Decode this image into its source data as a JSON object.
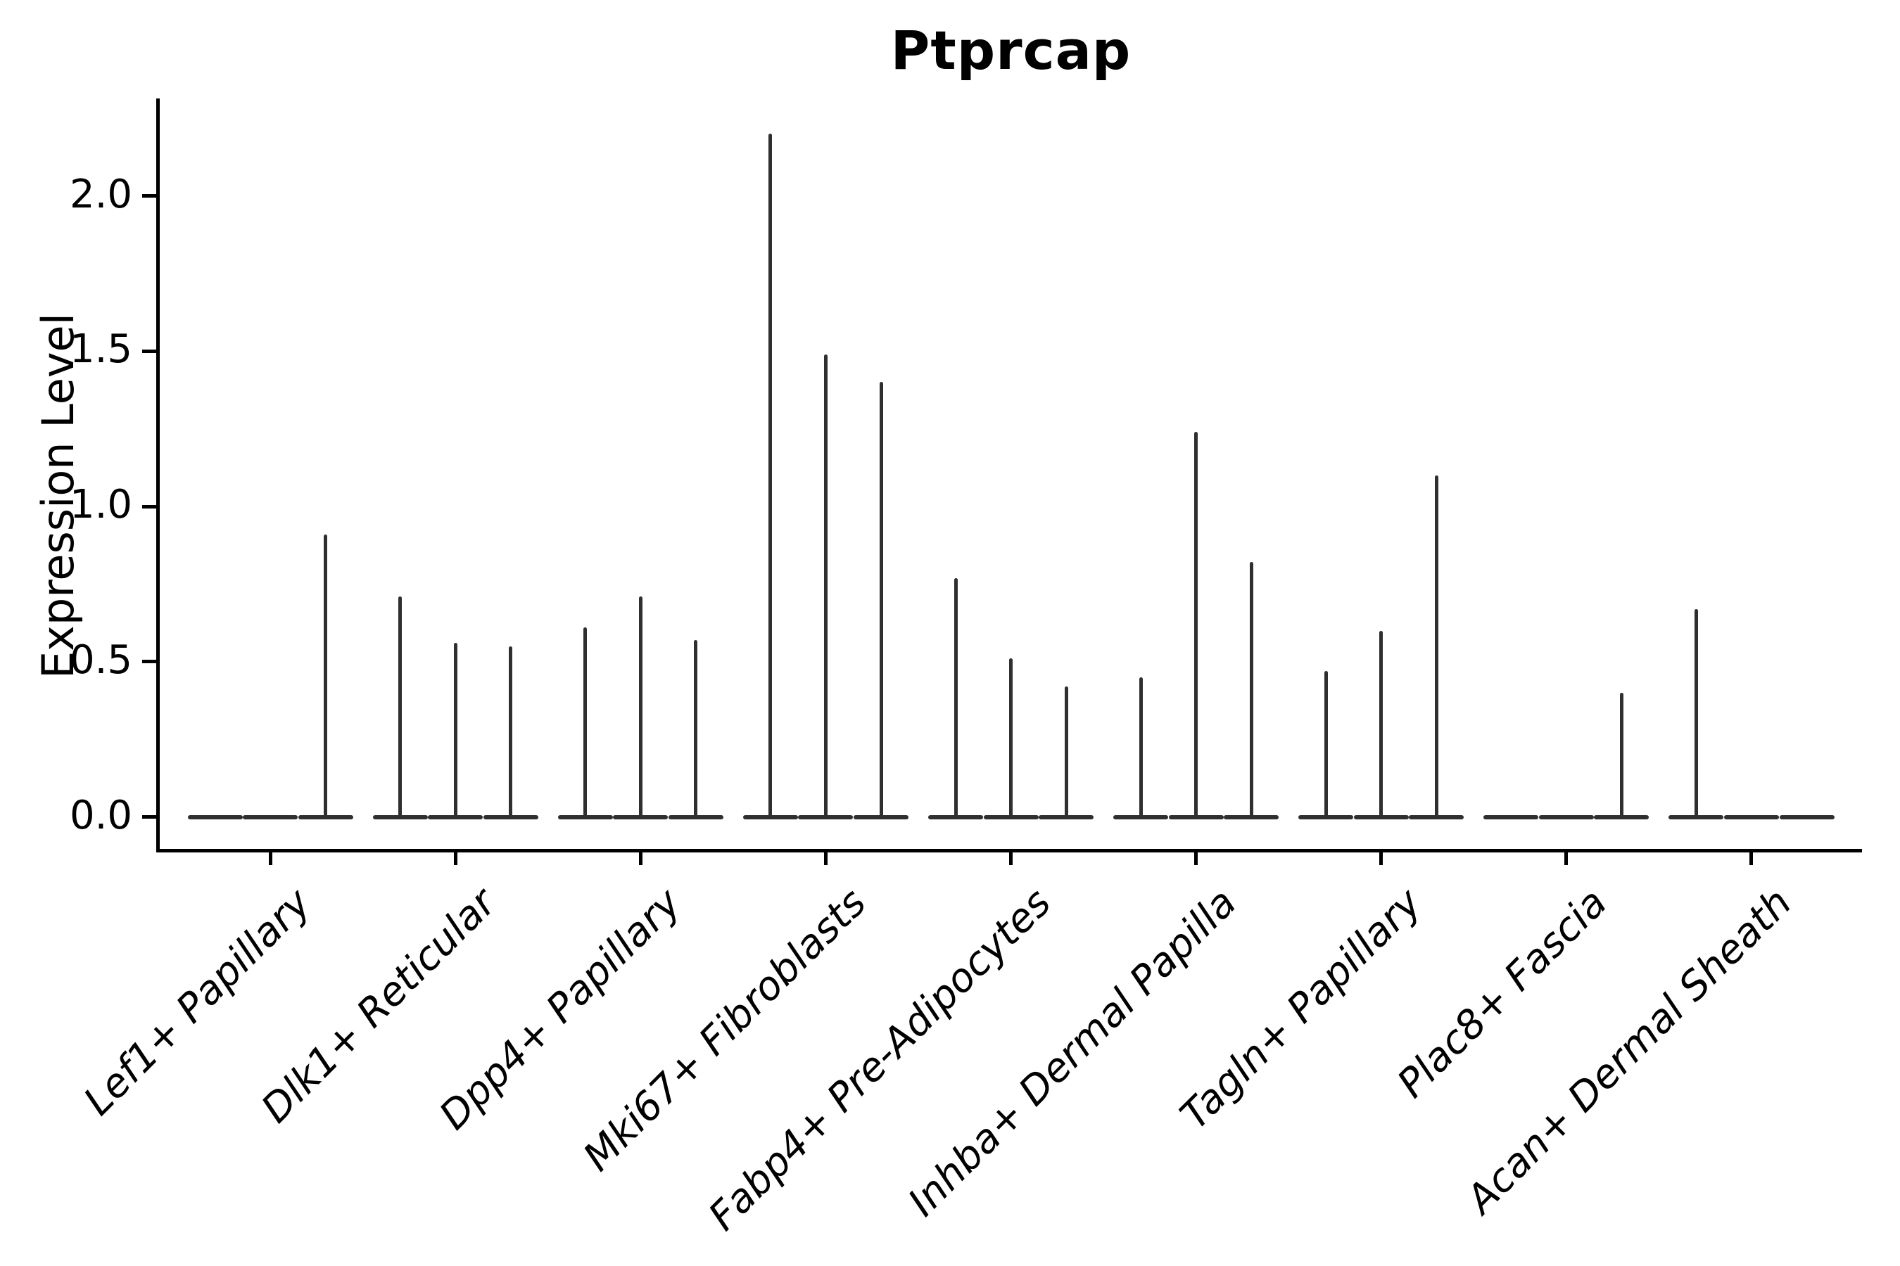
{
  "figure": {
    "title": "Ptprcap",
    "y_axis": {
      "label": "Expression Level",
      "tick_labels": [
        "0.0",
        "0.5",
        "1.0",
        "1.5",
        "2.0"
      ]
    },
    "x_axis": {
      "categories": [
        "Lef1+ Papillary",
        "Dlk1+ Reticular",
        "Dpp4+ Papillary",
        "Mki67+ Fibroblasts",
        "Fabp4+ Pre-Adipocytes",
        "Inhba+ Dermal Papilla",
        "Tagln+ Papillary",
        "Plac8+ Fascia",
        "Acan+ Dermal Sheath"
      ]
    }
  },
  "chart_data": {
    "type": "violin",
    "title": "Ptprcap",
    "xlabel": "",
    "ylabel": "Expression Level",
    "yticks": [
      0.0,
      0.5,
      1.0,
      1.5,
      2.0
    ],
    "ylim": [
      -0.1,
      2.31
    ],
    "grid": false,
    "legend": "none",
    "violins_per_category": 3,
    "violin_shape": "collapsed-to-spike (near-zero density width, max shown as thin vertical line, base segment at 0)",
    "categories": [
      "Lef1+ Papillary",
      "Dlk1+ Reticular",
      "Dpp4+ Papillary",
      "Mki67+ Fibroblasts",
      "Fabp4+ Pre-Adipocytes",
      "Inhba+ Dermal Papilla",
      "Tagln+ Papillary",
      "Plac8+ Fascia",
      "Acan+ Dermal Sheath"
    ],
    "series": [
      {
        "category": "Lef1+ Papillary",
        "violin_max_expression": [
          0.0,
          0.0,
          0.91
        ]
      },
      {
        "category": "Dlk1+ Reticular",
        "violin_max_expression": [
          0.71,
          0.56,
          0.55
        ]
      },
      {
        "category": "Dpp4+ Papillary",
        "violin_max_expression": [
          0.61,
          0.71,
          0.57
        ]
      },
      {
        "category": "Mki67+ Fibroblasts",
        "violin_max_expression": [
          2.2,
          1.49,
          1.4
        ]
      },
      {
        "category": "Fabp4+ Pre-Adipocytes",
        "violin_max_expression": [
          0.77,
          0.51,
          0.42
        ]
      },
      {
        "category": "Inhba+ Dermal Papilla",
        "violin_max_expression": [
          0.45,
          1.24,
          0.82
        ]
      },
      {
        "category": "Tagln+ Papillary",
        "violin_max_expression": [
          0.47,
          0.6,
          1.1
        ]
      },
      {
        "category": "Plac8+ Fascia",
        "violin_max_expression": [
          0.0,
          0.0,
          0.4
        ]
      },
      {
        "category": "Acan+ Dermal Sheath",
        "violin_max_expression": [
          0.67,
          0.0,
          0.0
        ]
      }
    ],
    "colors": {
      "violin_line": "#2f2f2f",
      "axis": "#000000",
      "text": "#000000",
      "background": "#ffffff"
    }
  }
}
